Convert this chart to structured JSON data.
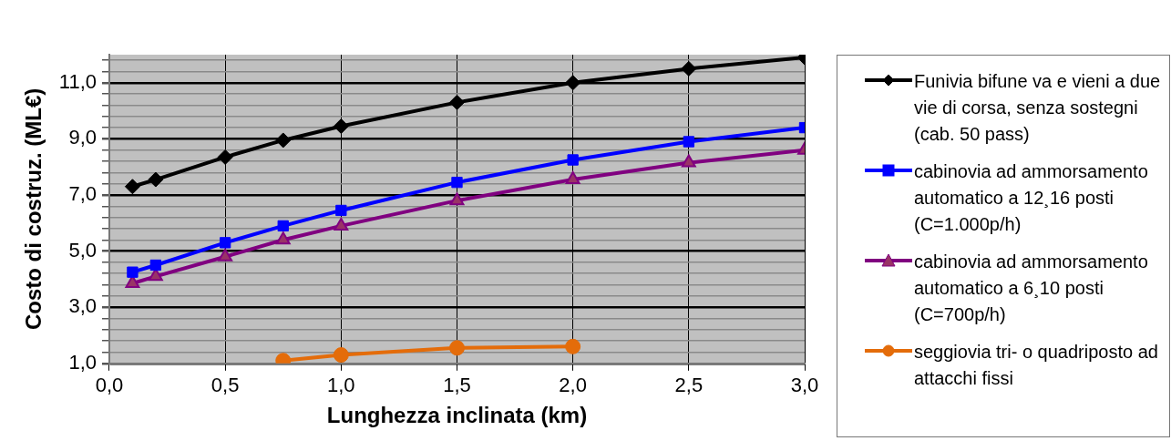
{
  "chart_data": {
    "type": "line",
    "xlabel": "Lunghezza inclinata (km)",
    "ylabel": "Costo di costruz. (ML€)",
    "xlim": [
      0,
      3
    ],
    "xticks": [
      {
        "value": 0,
        "label": "0,0"
      },
      {
        "value": 0.5,
        "label": "0,5"
      },
      {
        "value": 1,
        "label": "1,0"
      },
      {
        "value": 1.5,
        "label": "1,5"
      },
      {
        "value": 2,
        "label": "2,0"
      },
      {
        "value": 2.5,
        "label": "2,5"
      },
      {
        "value": 3,
        "label": "3,0"
      }
    ],
    "ylim": [
      1,
      12
    ],
    "yticks": [
      {
        "value": 1,
        "label": "1,0"
      },
      {
        "value": 1.4,
        "label": null
      },
      {
        "value": 1.8,
        "label": null
      },
      {
        "value": 2.2,
        "label": null
      },
      {
        "value": 2.6,
        "label": null
      },
      {
        "value": 3,
        "label": "3,0"
      },
      {
        "value": 3.4,
        "label": null
      },
      {
        "value": 3.8,
        "label": null
      },
      {
        "value": 4.2,
        "label": null
      },
      {
        "value": 4.6,
        "label": null
      },
      {
        "value": 5,
        "label": "5,0"
      },
      {
        "value": 5.4,
        "label": null
      },
      {
        "value": 5.8,
        "label": null
      },
      {
        "value": 6.2,
        "label": null
      },
      {
        "value": 6.6,
        "label": null
      },
      {
        "value": 7,
        "label": "7,0"
      },
      {
        "value": 7.4,
        "label": null
      },
      {
        "value": 7.8,
        "label": null
      },
      {
        "value": 8.2,
        "label": null
      },
      {
        "value": 8.6,
        "label": null
      },
      {
        "value": 9,
        "label": "9,0"
      },
      {
        "value": 9.4,
        "label": null
      },
      {
        "value": 9.8,
        "label": null
      },
      {
        "value": 10.2,
        "label": null
      },
      {
        "value": 10.6,
        "label": null
      },
      {
        "value": 11,
        "label": "11,0"
      },
      {
        "value": 11.4,
        "label": null
      },
      {
        "value": 11.8,
        "label": null
      }
    ],
    "grid": true,
    "legend": "right",
    "line_style": "solid",
    "series": [
      {
        "name": "Funivia bifune va e vieni a due vie di corsa, senza sostegni (cab. 50 pass)",
        "color": "#000000",
        "marker": "diamond",
        "x": [
          0.1,
          0.2,
          0.5,
          0.75,
          1,
          1.5,
          2,
          2.5,
          3
        ],
        "values": [
          7.3,
          7.55,
          8.35,
          8.95,
          9.45,
          10.3,
          11,
          11.5,
          11.9
        ]
      },
      {
        "name": "cabinovia ad ammorsamento automatico a 12¸16 posti (C=1.000p/h)",
        "color": "#0000ff",
        "marker": "square",
        "x": [
          0.1,
          0.2,
          0.5,
          0.75,
          1,
          1.5,
          2,
          2.5,
          3
        ],
        "values": [
          4.25,
          4.5,
          5.3,
          5.9,
          6.45,
          7.45,
          8.25,
          8.9,
          9.4
        ]
      },
      {
        "name": "cabinovia ad ammorsamento automatico a 6¸10 posti (C=700p/h)",
        "color": "#800080",
        "marker": "triangle",
        "x": [
          0.1,
          0.2,
          0.5,
          0.75,
          1,
          1.5,
          2,
          2.5,
          3
        ],
        "values": [
          3.85,
          4.1,
          4.8,
          5.4,
          5.9,
          6.8,
          7.55,
          8.15,
          8.6
        ]
      },
      {
        "name": "seggiovia tri- o quadriposto ad attacchi fissi",
        "color": "#e46c0a",
        "marker": "circle",
        "x": [
          0.75,
          1,
          1.5,
          2
        ],
        "values": [
          1.1,
          1.3,
          1.55,
          1.6
        ]
      }
    ]
  }
}
